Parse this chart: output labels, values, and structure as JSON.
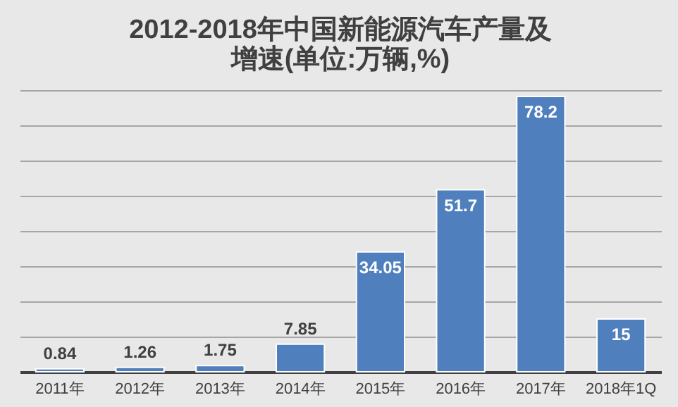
{
  "chart_data": {
    "type": "bar",
    "title": [
      "2012-2018年中国新能源汽车产量及",
      "增速(单位:万辆,%)"
    ],
    "categories": [
      "2011年",
      "2012年",
      "2013年",
      "2014年",
      "2015年",
      "2016年",
      "2017年",
      "2018年1Q"
    ],
    "values": [
      0.84,
      1.26,
      1.75,
      7.85,
      34.05,
      51.7,
      78.2,
      15
    ],
    "color": "#4f7fbd",
    "grid": "y",
    "tick_labels": "x",
    "data_labels": true
  }
}
